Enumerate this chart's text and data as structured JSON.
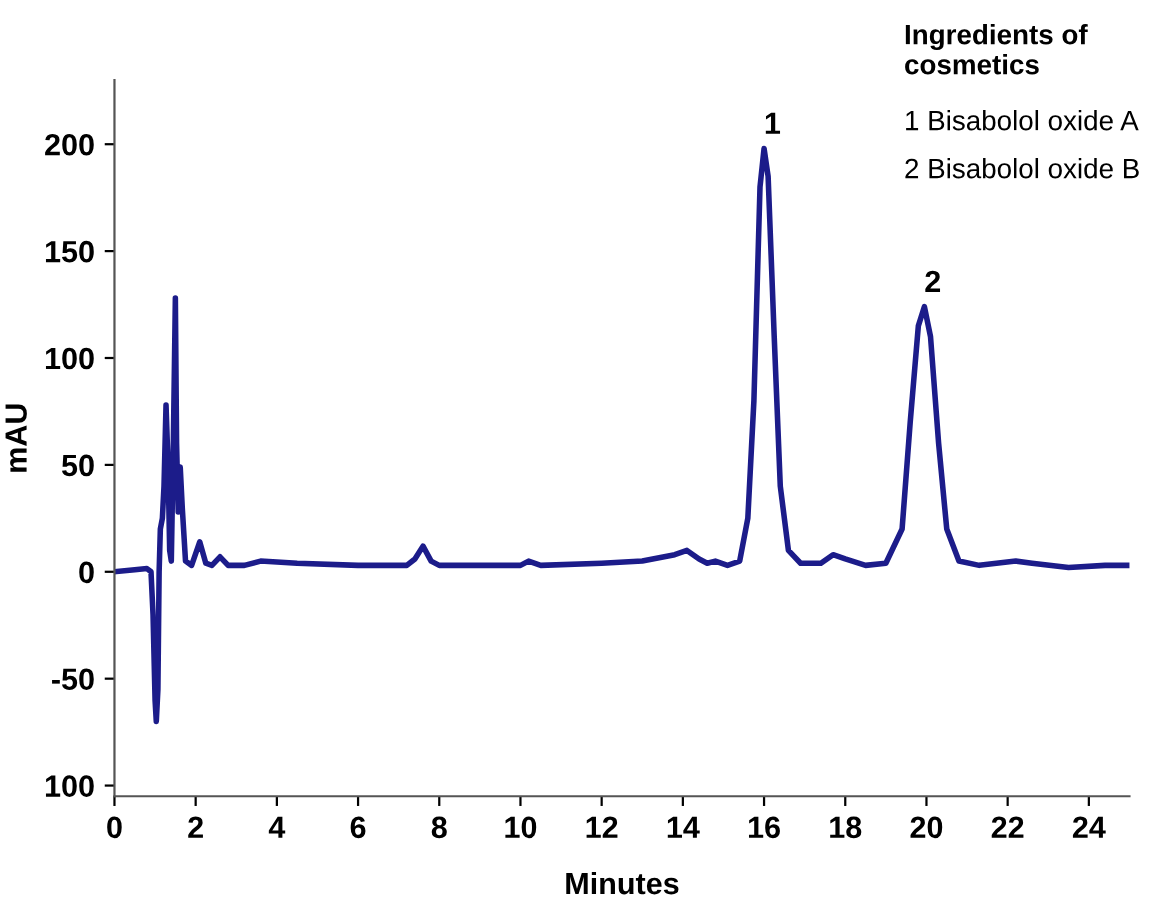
{
  "chart_data": {
    "type": "line",
    "xlabel": "Minutes",
    "ylabel": "mAU",
    "xlim": [
      0,
      25
    ],
    "ylim": [
      -105,
      230
    ],
    "xticks": [
      0,
      2,
      4,
      6,
      8,
      10,
      12,
      14,
      16,
      18,
      20,
      22,
      24
    ],
    "yticks": [
      {
        "value": -100,
        "label": "100"
      },
      -50,
      0,
      50,
      100,
      150,
      200
    ],
    "grid": false,
    "legend": false,
    "marker": "none",
    "line_style": "solid",
    "annotations": [
      "Ingredients of cosmetics",
      "1 Bisabolol oxide A",
      "2 Bisabolol oxide B",
      {
        "text": "1",
        "x": 16.0,
        "y": 198
      },
      {
        "text": "2",
        "x": 19.95,
        "y": 124
      }
    ],
    "series": [
      {
        "color": "#1c1c8a",
        "x": [
          0,
          0.5,
          0.8,
          0.9,
          0.95,
          1.0,
          1.03,
          1.07,
          1.1,
          1.13,
          1.18,
          1.22,
          1.27,
          1.32,
          1.36,
          1.4,
          1.45,
          1.5,
          1.53,
          1.57,
          1.62,
          1.67,
          1.75,
          1.9,
          2.1,
          2.25,
          2.4,
          2.6,
          2.8,
          3.2,
          3.6,
          4.5,
          6,
          7.2,
          7.4,
          7.6,
          7.8,
          8,
          10,
          10.2,
          10.5,
          12,
          13,
          13.8,
          14.1,
          14.4,
          14.6,
          14.8,
          15.1,
          15.4,
          15.6,
          15.75,
          15.9,
          16.0,
          16.1,
          16.25,
          16.4,
          16.6,
          16.9,
          17.4,
          17.7,
          18.0,
          18.5,
          19.0,
          19.4,
          19.6,
          19.8,
          19.95,
          20.1,
          20.3,
          20.5,
          20.8,
          21.3,
          22.2,
          22.6,
          23.5,
          24.4,
          25
        ],
        "values": [
          0,
          1,
          1.5,
          0,
          -20,
          -60,
          -70,
          -55,
          0,
          20,
          25,
          40,
          78,
          50,
          10,
          5,
          60,
          128,
          60,
          28,
          49,
          30,
          5,
          3,
          14,
          4,
          3,
          7,
          3,
          3,
          5,
          4,
          3,
          3,
          6,
          12,
          5,
          3,
          3,
          5,
          3,
          4,
          5,
          8,
          10,
          6,
          4,
          5,
          3,
          5,
          25,
          80,
          180,
          198,
          185,
          110,
          40,
          10,
          4,
          4,
          8,
          6,
          3,
          4,
          20,
          70,
          115,
          124,
          110,
          60,
          20,
          5,
          3,
          5,
          4,
          2,
          3,
          3
        ]
      }
    ]
  }
}
